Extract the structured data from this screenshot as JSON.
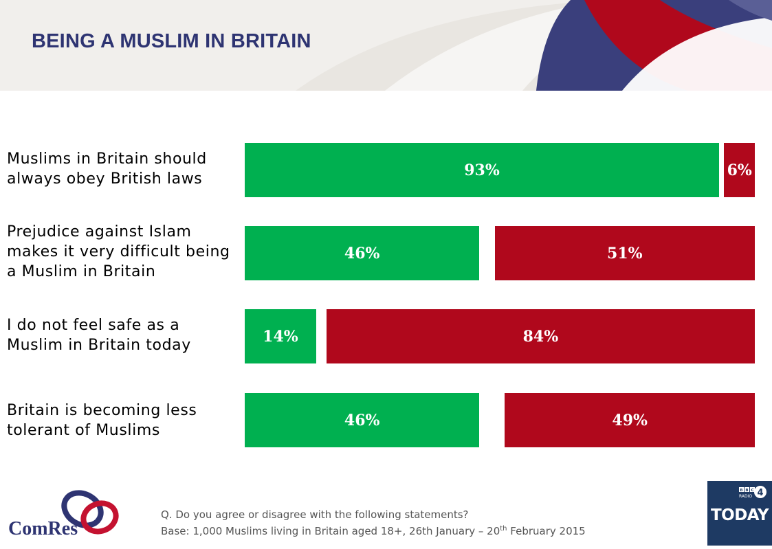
{
  "header": {
    "title": "BEING A MUSLIM IN BRITAIN"
  },
  "chart_data": {
    "type": "bar",
    "orientation": "horizontal",
    "stacked": true,
    "categories": [
      "Muslims in Britain should always obey British laws",
      "Prejudice against Islam makes it very difficult being a Muslim in Britain",
      "I do not feel safe as a Muslim in Britain today",
      "Britain is becoming less tolerant of Muslims"
    ],
    "series": [
      {
        "values": [
          93,
          46,
          14,
          46
        ],
        "color": "#00b050"
      },
      {
        "values": [
          6,
          51,
          84,
          49
        ],
        "color": "#b0081c"
      }
    ],
    "value_suffix": "%",
    "xlim": [
      0,
      100
    ],
    "grid": false,
    "legend": "none"
  },
  "footer": {
    "question": "Q. Do you agree or disagree with the following statements?",
    "base_prefix": "Base: 1,000 Muslims living in Britain aged 18+, 26th January – 20",
    "base_sup": "th",
    "base_suffix": " February 2015"
  },
  "logos": {
    "comres_text": "ComRes",
    "bbc_text": "BBC",
    "radio_text": "RADIO",
    "radio_number": "4",
    "today_text": "TODAY"
  }
}
